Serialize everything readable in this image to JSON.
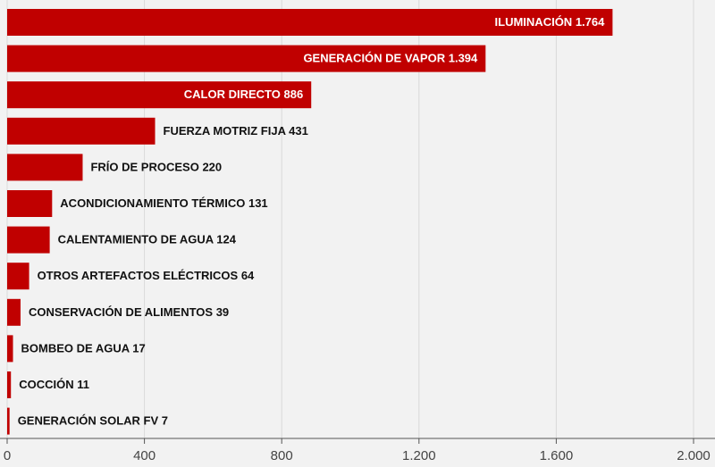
{
  "chart_data": {
    "type": "bar",
    "orientation": "horizontal",
    "categories": [
      "ILUMINACIÓN",
      "GENERACIÓN DE VAPOR",
      "CALOR DIRECTO",
      "FUERZA MOTRIZ FIJA",
      "FRÍO DE PROCESO",
      "ACONDICIONAMIENTO TÉRMICO",
      "CALENTAMIENTO DE AGUA",
      "OTROS ARTEFACTOS ELÉCTRICOS",
      "CONSERVACIÓN DE ALIMENTOS",
      "BOMBEO DE AGUA",
      "COCCIÓN",
      "GENERACIÓN SOLAR FV"
    ],
    "values": [
      1764,
      1394,
      886,
      431,
      220,
      131,
      124,
      64,
      39,
      17,
      11,
      7
    ],
    "value_labels": [
      "1.764",
      "1.394",
      "886",
      "431",
      "220",
      "131",
      "124",
      "64",
      "39",
      "17",
      "11",
      "7"
    ],
    "color": "#c00000",
    "xlim": [
      0,
      2000
    ],
    "xticks": [
      0,
      400,
      800,
      {
        "value": 1200,
        "label": "1.200"
      },
      {
        "value": 1600,
        "label": "1.600"
      },
      {
        "value": 2000,
        "label": "2.000"
      }
    ],
    "grid": true
  }
}
